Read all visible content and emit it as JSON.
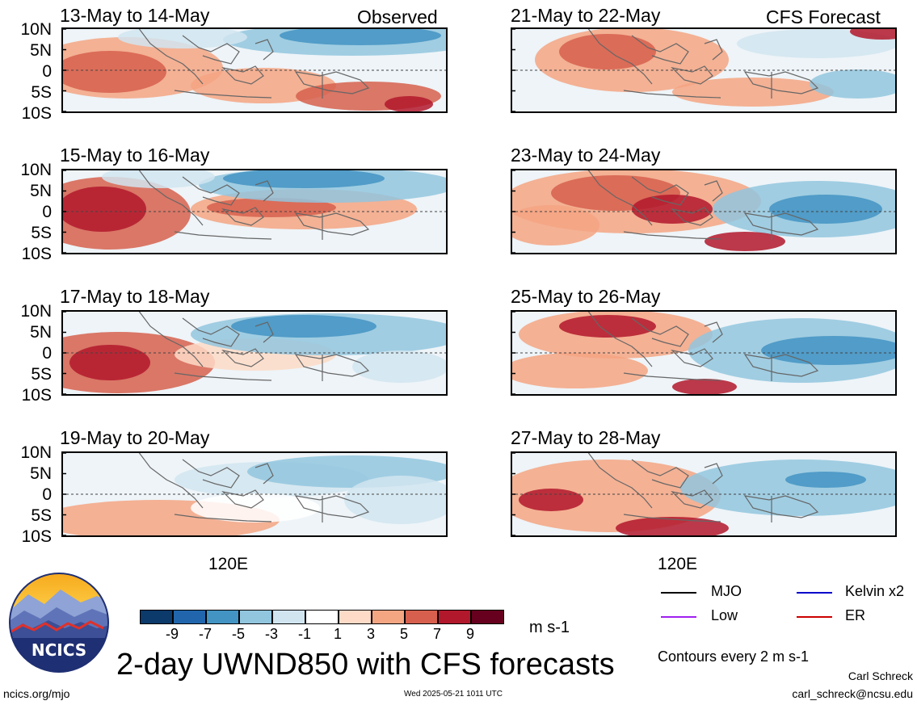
{
  "header": {
    "left_tag": "Observed",
    "right_tag": "CFS Forecast"
  },
  "axes": {
    "y_ticks": [
      "10N",
      "5N",
      "0",
      "5S",
      "10S"
    ],
    "x_tick": "120E"
  },
  "colorbar": {
    "unit": "m s-1",
    "tick_labels": [
      "-9",
      "-7",
      "-5",
      "-3",
      "-1",
      "1",
      "3",
      "5",
      "7",
      "9"
    ],
    "colors": [
      "#0b3a6b",
      "#2166ac",
      "#4393c3",
      "#92c5de",
      "#d1e5f0",
      "#ffffff",
      "#fddbc7",
      "#f4a582",
      "#d6604d",
      "#b2182b",
      "#67001f"
    ]
  },
  "legend": {
    "mjo": "MJO",
    "kelvin": "Kelvin x2",
    "low": "Low",
    "er": "ER",
    "contours_note": "Contours every 2 m s-1",
    "colors": {
      "mjo": "#000000",
      "kelvin": "#0000cc",
      "low": "#a020f0",
      "er": "#cc0000"
    }
  },
  "footer": {
    "title": "2-day UWND850 with CFS forecasts",
    "url": "ncics.org/mjo",
    "timestamp": "Wed 2025-05-21 1011 UTC",
    "author": "Carl Schreck",
    "email": "carl_schreck@ncsu.edu",
    "logo_text": "NCICS"
  },
  "chart_data": {
    "type": "heatmap",
    "variable": "850 hPa zonal wind anomaly",
    "units": "m s-1",
    "contour_interval": 2,
    "panels": [
      {
        "label": "13-May to 14-May",
        "kind": "observed"
      },
      {
        "label": "15-May to 16-May",
        "kind": "observed"
      },
      {
        "label": "17-May to 18-May",
        "kind": "observed"
      },
      {
        "label": "19-May to 20-May",
        "kind": "observed"
      },
      {
        "label": "21-May to 22-May",
        "kind": "forecast"
      },
      {
        "label": "23-May to 24-May",
        "kind": "forecast"
      },
      {
        "label": "25-May to 26-May",
        "kind": "forecast"
      },
      {
        "label": "27-May to 28-May",
        "kind": "forecast"
      }
    ],
    "lat_range": [
      -10,
      10
    ],
    "lon_label": "120E"
  }
}
